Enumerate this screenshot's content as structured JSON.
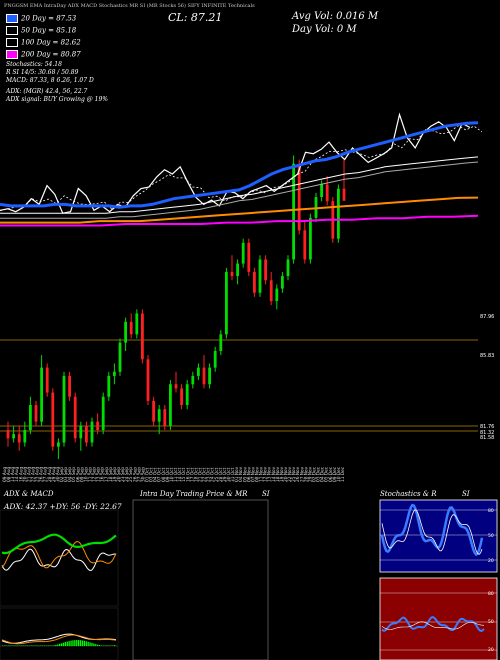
{
  "header": {
    "topline": "PNGGSM EMA IntraDay ADX MACD Stochastics MR SI (MR Stocks 56) SIFY INFINITE Technicals",
    "close_label": "CL: 87.21",
    "avg_vol_label": "Avg Vol: 0.016  M",
    "day_vol_label": "Day Vol: 0  M",
    "legend": [
      {
        "label": "20 Day = 87.53",
        "color": "#1f5fff"
      },
      {
        "label": "50 Day = 85.18",
        "color": "#ffffff"
      },
      {
        "label": "100 Day = 82.62",
        "color": "#ffffff"
      },
      {
        "label": "200 Day = 80.87",
        "color": "#ff00ff"
      }
    ],
    "lines": [
      "Stochastics: 54.18",
      "R                   SI 14/5: 30.68 / 50.89",
      "MACD: 87.33, 8            6.26, 1.07 D",
      "ADX:                    (MGR) 42.4,  56,  22.7",
      "ADX  signal:                          BUY Growing @ 19%"
    ]
  },
  "price_axis_labels": [
    {
      "label": "87.96",
      "y": 316
    },
    {
      "label": "85.83",
      "y": 355
    },
    {
      "label": "81.76",
      "y": 426
    },
    {
      "label": "81.32",
      "y": 432
    },
    {
      "label": "81.58",
      "y": 437
    }
  ],
  "dates": [
    "09 Aug",
    "08 Aug",
    "13 Aug",
    "14 Aug",
    "16 Aug",
    "20 Aug",
    "21 Aug",
    "22 Aug",
    "23 Aug",
    "26 Aug",
    "27 Aug",
    "28 Aug",
    "29 Aug",
    "30 Aug",
    "02 Sep",
    "03 Sep",
    "04 Sep",
    "05 Sep",
    "06 Sep",
    "09 Sep",
    "10 Sep",
    "11 Sep",
    "12 Sep",
    "13 Sep",
    "16 Sep",
    "17 Sep",
    "18 Sep",
    "19 Sep",
    "20 Sep",
    "23 Sep",
    "24 Sep",
    "25 Sep",
    "26 Sep",
    "27 Sep",
    "30 Sep",
    "01 Oct",
    "03 Oct",
    "04 Oct",
    "07 Oct",
    "08 Oct",
    "09 Oct",
    "10 Oct",
    "11 Oct",
    "14 Oct",
    "15 Oct",
    "16 Oct",
    "17 Oct",
    "18 Oct",
    "21 Oct",
    "22 Oct",
    "23 Oct",
    "24 Oct",
    "25 Oct",
    "28 Oct",
    "29 Oct",
    "30 Oct",
    "31 Oct",
    "01 Nov",
    "04 Nov",
    "05 Nov",
    "06 Nov",
    "07 Nov",
    "08 Nov",
    "11 Nov",
    "12 Nov",
    "13 Nov",
    "14 Nov",
    "18 Nov",
    "19 Nov",
    "20 Nov",
    "22 Nov",
    "25 Nov",
    "26 Nov",
    "27 Nov",
    "28 Nov",
    "29 Nov",
    "02 Dec",
    "03 Dec",
    "04 Dec",
    "05 Dec",
    "06 Dec",
    "09 Dec",
    "10 Dec",
    "11 Dec"
  ],
  "panels": {
    "adx_title": "ADX  & MACD",
    "adx_values": "ADX: 42.37  +DY: 56  -DY: 22.67",
    "intraday_title": "Intra  Day Trading Price  & MR",
    "intraday_si": "SI",
    "stoch_title": "Stochastics & R",
    "stoch_si": "SI",
    "stoch_axis": [
      "80",
      "50",
      "20"
    ],
    "si_axis": [
      "80",
      "50",
      "20"
    ]
  },
  "chart_data": [
    {
      "type": "candlestick",
      "title": "Price with EMA 20/50/100/200",
      "candles_ohlc": [
        [
          81.7,
          81.9,
          81.3,
          81.5
        ],
        [
          81.5,
          81.8,
          81.4,
          81.6
        ],
        [
          81.6,
          81.8,
          81.2,
          81.4
        ],
        [
          81.4,
          81.9,
          81.3,
          81.7
        ],
        [
          81.7,
          82.5,
          81.6,
          82.3
        ],
        [
          82.3,
          82.4,
          81.8,
          81.9
        ],
        [
          81.9,
          83.5,
          81.8,
          83.2
        ],
        [
          83.2,
          83.3,
          82.5,
          82.6
        ],
        [
          82.6,
          82.7,
          81.2,
          81.3
        ],
        [
          81.3,
          81.5,
          81.0,
          81.4
        ],
        [
          81.4,
          83.1,
          81.3,
          83.0
        ],
        [
          83.0,
          83.1,
          82.4,
          82.5
        ],
        [
          82.5,
          82.6,
          81.4,
          81.5
        ],
        [
          81.5,
          81.9,
          81.2,
          81.8
        ],
        [
          81.8,
          81.9,
          81.3,
          81.4
        ],
        [
          81.4,
          82.0,
          81.3,
          81.9
        ],
        [
          81.9,
          82.1,
          81.6,
          81.7
        ],
        [
          81.7,
          82.6,
          81.6,
          82.5
        ],
        [
          82.5,
          83.1,
          82.4,
          83.0
        ],
        [
          83.0,
          83.3,
          82.8,
          83.1
        ],
        [
          83.1,
          83.9,
          83.0,
          83.8
        ],
        [
          83.8,
          84.4,
          83.6,
          84.3
        ],
        [
          84.3,
          84.5,
          83.9,
          84.0
        ],
        [
          84.0,
          84.6,
          83.9,
          84.5
        ],
        [
          84.5,
          84.6,
          83.3,
          83.4
        ],
        [
          83.4,
          83.5,
          82.3,
          82.4
        ],
        [
          82.4,
          82.5,
          81.8,
          81.9
        ],
        [
          81.9,
          82.3,
          81.6,
          82.2
        ],
        [
          82.2,
          82.3,
          81.7,
          81.8
        ],
        [
          81.8,
          82.9,
          81.7,
          82.8
        ],
        [
          82.8,
          83.1,
          82.6,
          82.7
        ],
        [
          82.7,
          82.8,
          82.2,
          82.3
        ],
        [
          82.3,
          82.9,
          82.2,
          82.8
        ],
        [
          82.8,
          83.1,
          82.7,
          83.0
        ],
        [
          83.0,
          83.3,
          82.9,
          83.2
        ],
        [
          83.2,
          83.5,
          82.7,
          82.8
        ],
        [
          82.8,
          83.3,
          82.7,
          83.2
        ],
        [
          83.2,
          83.7,
          83.1,
          83.6
        ],
        [
          83.6,
          84.1,
          83.5,
          84.0
        ],
        [
          84.0,
          85.6,
          83.9,
          85.5
        ],
        [
          85.5,
          85.9,
          85.3,
          85.4
        ],
        [
          85.4,
          85.8,
          85.2,
          85.7
        ],
        [
          85.7,
          86.3,
          85.6,
          86.2
        ],
        [
          86.2,
          86.3,
          85.4,
          85.5
        ],
        [
          85.5,
          85.6,
          84.9,
          85.0
        ],
        [
          85.0,
          85.9,
          84.9,
          85.8
        ],
        [
          85.8,
          85.9,
          85.2,
          85.3
        ],
        [
          85.3,
          85.5,
          84.7,
          84.8
        ],
        [
          84.8,
          85.2,
          84.6,
          85.1
        ],
        [
          85.1,
          85.5,
          85.0,
          85.4
        ],
        [
          85.4,
          85.9,
          85.3,
          85.8
        ],
        [
          85.8,
          88.3,
          85.7,
          88.1
        ],
        [
          88.1,
          88.2,
          86.4,
          86.5
        ],
        [
          86.5,
          86.7,
          85.7,
          85.8
        ],
        [
          85.8,
          86.9,
          85.7,
          86.8
        ],
        [
          86.8,
          87.4,
          86.7,
          87.3
        ],
        [
          87.3,
          87.7,
          87.2,
          87.6
        ],
        [
          87.6,
          87.8,
          87.1,
          87.2
        ],
        [
          87.2,
          87.3,
          86.2,
          86.3
        ],
        [
          86.3,
          87.6,
          86.2,
          87.5
        ],
        [
          87.5,
          88.2,
          87.3,
          87.21
        ]
      ],
      "ema_20": [
        81.9,
        81.8,
        81.8,
        81.8,
        81.8,
        81.9,
        81.9,
        81.8,
        81.8,
        81.8,
        81.8,
        81.7,
        81.8,
        81.8,
        81.9,
        82.1,
        82.3,
        82.4,
        82.5,
        82.6,
        82.7,
        82.8,
        82.9,
        83.2,
        83.6,
        84.0,
        84.3,
        84.5,
        84.7,
        84.9,
        85.0,
        85.2,
        85.5,
        85.7,
        85.9,
        86.1,
        86.3,
        86.5,
        86.7,
        86.9,
        87.1,
        87.3,
        87.4,
        87.5,
        87.53
      ],
      "ema_50": [
        81.3,
        81.3,
        81.3,
        81.3,
        81.3,
        81.3,
        81.3,
        81.3,
        81.3,
        81.4,
        81.4,
        81.5,
        81.6,
        81.7,
        81.8,
        81.9,
        82.1,
        82.3,
        82.5,
        82.6,
        82.8,
        83.0,
        83.2,
        83.4,
        83.6,
        83.8,
        84.0,
        84.1,
        84.3,
        84.5,
        84.6,
        84.7,
        84.8,
        84.9,
        85.0,
        85.1,
        85.18
      ],
      "ema_100": [
        80.9,
        80.9,
        80.9,
        80.9,
        80.9,
        81.0,
        81.0,
        81.0,
        81.1,
        81.2,
        81.3,
        81.4,
        81.5,
        81.6,
        81.7,
        81.8,
        81.9,
        82.0,
        82.1,
        82.2,
        82.3,
        82.4,
        82.5,
        82.6,
        82.62
      ],
      "ema_200": [
        80.2,
        80.2,
        80.2,
        80.2,
        80.2,
        80.3,
        80.3,
        80.3,
        80.3,
        80.4,
        80.4,
        80.5,
        80.5,
        80.6,
        80.6,
        80.7,
        80.7,
        80.8,
        80.8,
        80.87
      ]
    },
    {
      "type": "line",
      "title": "ADX & MACD",
      "adx": 42.37,
      "plus_dy": 56,
      "minus_dy": 22.67
    },
    {
      "type": "line",
      "title": "Stochastics & R / SI",
      "stochastics": 54.18,
      "si": [
        30.68,
        50.89
      ]
    }
  ]
}
